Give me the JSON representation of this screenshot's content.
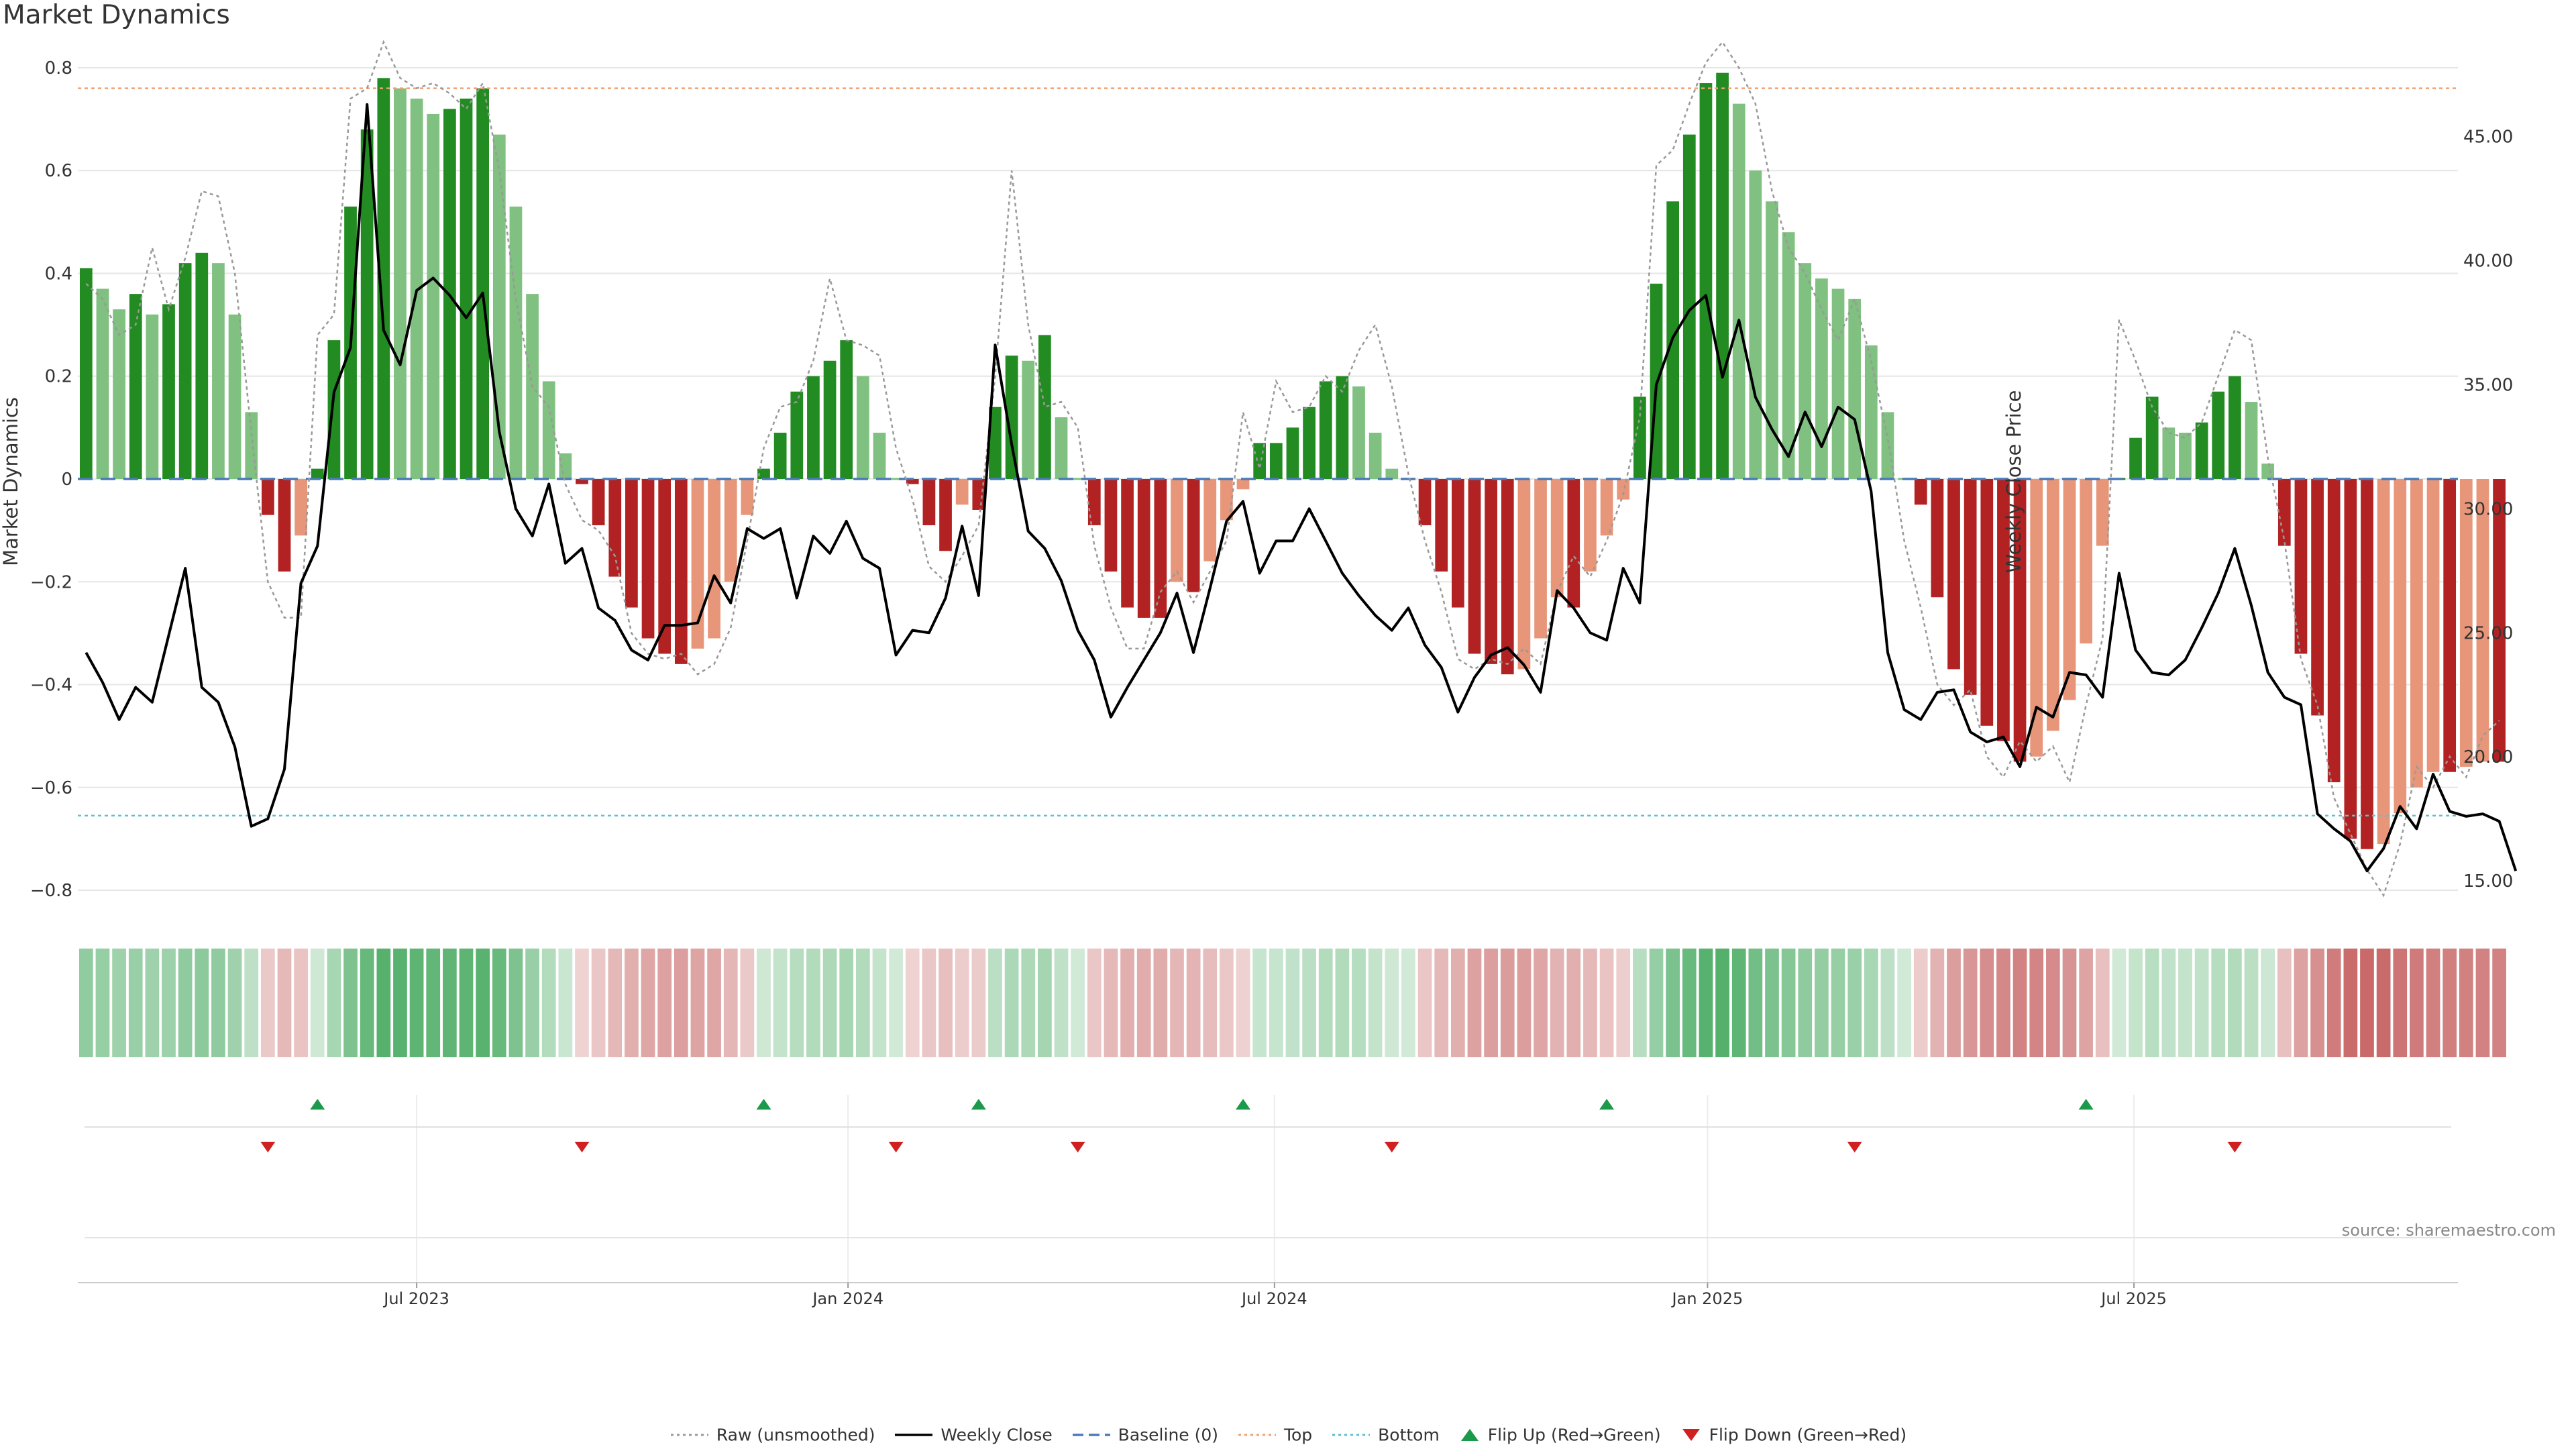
{
  "title": "Market Dynamics",
  "source": "source: sharemaestro.com",
  "colors": {
    "strong_green": "#228b22",
    "light_green": "#80c080",
    "strong_red": "#b22222",
    "light_red": "#e8967a",
    "weekly_close": "#000000",
    "raw": "#999999",
    "baseline": "#4a7ab8",
    "top": "#f0a070",
    "bottom": "#5bc0d0",
    "flip_up": "#1a9a4a",
    "flip_down": "#d02020"
  },
  "legend": [
    {
      "key": "raw",
      "label": "Raw (unsmoothed)",
      "style": "dotted",
      "color": "#999999"
    },
    {
      "key": "close",
      "label": "Weekly Close",
      "style": "solid",
      "color": "#000000"
    },
    {
      "key": "baseline",
      "label": "Baseline (0)",
      "style": "dashed",
      "color": "#4a7ab8"
    },
    {
      "key": "top",
      "label": "Top",
      "style": "dotted",
      "color": "#f0a070"
    },
    {
      "key": "bottom",
      "label": "Bottom",
      "style": "dotted",
      "color": "#5bc0d0"
    },
    {
      "key": "flipup",
      "label": "Flip Up (Red→Green)",
      "style": "triangle-up",
      "color": "#1a9a4a"
    },
    {
      "key": "flipdown",
      "label": "Flip Down (Green→Red)",
      "style": "triangle-down",
      "color": "#d02020"
    }
  ],
  "chart_data": {
    "type": "bar",
    "title": "Market Dynamics",
    "ylabel": "Market Dynamics",
    "y2label": "Weekly Close Price",
    "ylim": [
      -0.83,
      0.83
    ],
    "y2lim": [
      14.0,
      48.4
    ],
    "yticks": [
      0.8,
      0.6,
      0.4,
      0.2,
      0,
      -0.2,
      -0.4,
      -0.6,
      -0.8
    ],
    "yticklabels": [
      "0.8",
      "0.6",
      "0.4",
      "0.2",
      "0",
      "−0.2",
      "−0.4",
      "−0.6",
      "−0.8"
    ],
    "y2ticks": [
      45,
      40,
      35,
      30,
      25,
      20,
      15
    ],
    "y2ticklabels": [
      "45.00",
      "40.00",
      "35.00",
      "30.00",
      "25.00",
      "20.00",
      "15.00"
    ],
    "xticks": [
      {
        "label": "Jul 2023",
        "week": 20.5
      },
      {
        "label": "Jan 2024",
        "week": 46.6
      },
      {
        "label": "Jul 2024",
        "week": 72.4
      },
      {
        "label": "Jan 2025",
        "week": 98.6
      },
      {
        "label": "Jul 2025",
        "week": 124.4
      }
    ],
    "top_line": 0.76,
    "bottom_line": -0.655,
    "legend_position": "bottom-center",
    "grid": true,
    "weeks": 144,
    "series": [
      {
        "name": "Market Dynamics",
        "values": [
          0.41,
          0.37,
          0.33,
          0.36,
          0.32,
          0.34,
          0.42,
          0.44,
          0.42,
          0.32,
          0.13,
          -0.07,
          -0.18,
          -0.11,
          0.02,
          0.27,
          0.53,
          0.68,
          0.78,
          0.76,
          0.74,
          0.71,
          0.72,
          0.74,
          0.76,
          0.67,
          0.53,
          0.36,
          0.19,
          0.05,
          -0.01,
          -0.09,
          -0.19,
          -0.25,
          -0.31,
          -0.34,
          -0.36,
          -0.33,
          -0.31,
          -0.2,
          -0.07,
          0.02,
          0.09,
          0.17,
          0.2,
          0.23,
          0.27,
          0.2,
          0.09,
          0.0,
          -0.01,
          -0.09,
          -0.14,
          -0.05,
          -0.06,
          0.14,
          0.24,
          0.23,
          0.28,
          0.12,
          0.0,
          -0.09,
          -0.18,
          -0.25,
          -0.27,
          -0.27,
          -0.2,
          -0.22,
          -0.16,
          -0.08,
          -0.02,
          0.07,
          0.07,
          0.1,
          0.14,
          0.19,
          0.2,
          0.18,
          0.09,
          0.02,
          0.0,
          -0.09,
          -0.18,
          -0.25,
          -0.34,
          -0.36,
          -0.38,
          -0.37,
          -0.31,
          -0.23,
          -0.25,
          -0.18,
          -0.11,
          -0.04,
          0.16,
          0.38,
          0.54,
          0.67,
          0.77,
          0.79,
          0.73,
          0.6,
          0.54,
          0.48,
          0.42,
          0.39,
          0.37,
          0.35,
          0.26,
          0.13,
          0.0,
          -0.05,
          -0.23,
          -0.37,
          -0.42,
          -0.48,
          -0.51,
          -0.55,
          -0.54,
          -0.49,
          -0.43,
          -0.32,
          -0.13,
          0.0,
          0.08,
          0.16,
          0.1,
          0.09,
          0.11,
          0.17,
          0.2,
          0.15,
          0.03,
          -0.13,
          -0.34,
          -0.46,
          -0.59,
          -0.7,
          -0.72,
          -0.71,
          -0.65,
          -0.6,
          -0.57,
          -0.57,
          -0.56,
          -0.55,
          -0.55
        ]
      },
      {
        "name": "Weekly Close",
        "values": [
          24.2,
          23.0,
          21.5,
          22.8,
          22.2,
          24.9,
          27.6,
          22.8,
          22.2,
          20.4,
          17.2,
          17.5,
          19.5,
          27.0,
          28.5,
          34.7,
          36.5,
          46.3,
          37.2,
          35.8,
          38.8,
          39.3,
          38.6,
          37.7,
          38.7,
          33.1,
          30.0,
          28.9,
          31.0,
          27.8,
          28.4,
          26.0,
          25.5,
          24.3,
          23.9,
          25.3,
          25.3,
          25.4,
          27.3,
          26.2,
          29.2,
          28.8,
          29.2,
          26.4,
          28.9,
          28.2,
          29.5,
          28.0,
          27.6,
          24.1,
          25.1,
          25.0,
          26.4,
          29.3,
          26.5,
          36.6,
          32.6,
          29.1,
          28.4,
          27.1,
          25.1,
          23.9,
          21.6,
          22.8,
          23.9,
          25.0,
          26.6,
          24.2,
          26.8,
          29.5,
          30.3,
          27.4,
          28.7,
          28.7,
          30.0,
          28.7,
          27.4,
          26.5,
          25.7,
          25.1,
          26.0,
          24.5,
          23.6,
          21.8,
          23.2,
          24.1,
          24.4,
          23.7,
          22.6,
          26.7,
          26.0,
          25.0,
          24.7,
          27.6,
          26.2,
          35.0,
          36.9,
          38.0,
          38.6,
          35.3,
          37.6,
          34.5,
          33.2,
          32.1,
          33.9,
          32.5,
          34.1,
          33.6,
          30.7,
          24.2,
          21.9,
          21.5,
          22.6,
          22.7,
          21.0,
          20.6,
          20.8,
          19.6,
          22.0,
          21.6,
          23.4,
          23.3,
          22.4,
          27.4,
          24.3,
          23.4,
          23.3,
          23.9,
          25.2,
          26.6,
          28.4,
          26.1,
          23.4,
          22.4,
          22.1,
          17.7,
          17.1,
          16.6,
          15.4,
          16.3,
          18.0,
          17.1,
          19.3,
          17.8,
          17.6,
          17.7,
          17.4,
          15.4
        ]
      },
      {
        "name": "Raw (unsmoothed)",
        "values": [
          0.38,
          0.35,
          0.28,
          0.3,
          0.45,
          0.33,
          0.43,
          0.56,
          0.55,
          0.4,
          0.09,
          -0.2,
          -0.27,
          -0.27,
          0.28,
          0.32,
          0.74,
          0.76,
          0.85,
          0.78,
          0.76,
          0.77,
          0.75,
          0.72,
          0.77,
          0.6,
          0.35,
          0.18,
          0.14,
          -0.01,
          -0.08,
          -0.1,
          -0.15,
          -0.3,
          -0.34,
          -0.35,
          -0.34,
          -0.38,
          -0.36,
          -0.29,
          -0.12,
          0.06,
          0.14,
          0.15,
          0.23,
          0.39,
          0.27,
          0.26,
          0.24,
          0.06,
          -0.04,
          -0.17,
          -0.2,
          -0.15,
          -0.09,
          0.2,
          0.6,
          0.3,
          0.14,
          0.15,
          0.1,
          -0.13,
          -0.25,
          -0.33,
          -0.33,
          -0.22,
          -0.18,
          -0.24,
          -0.18,
          -0.12,
          0.13,
          0.02,
          0.19,
          0.13,
          0.14,
          0.2,
          0.17,
          0.25,
          0.3,
          0.18,
          0.01,
          -0.12,
          -0.22,
          -0.35,
          -0.37,
          -0.35,
          -0.36,
          -0.33,
          -0.36,
          -0.22,
          -0.15,
          -0.19,
          -0.12,
          -0.03,
          0.12,
          0.61,
          0.64,
          0.73,
          0.81,
          0.85,
          0.8,
          0.73,
          0.56,
          0.45,
          0.4,
          0.33,
          0.27,
          0.35,
          0.23,
          0.08,
          -0.12,
          -0.25,
          -0.4,
          -0.44,
          -0.41,
          -0.54,
          -0.58,
          -0.51,
          -0.55,
          -0.52,
          -0.59,
          -0.44,
          -0.31,
          0.31,
          0.23,
          0.14,
          0.09,
          0.08,
          0.11,
          0.2,
          0.29,
          0.27,
          0.04,
          -0.12,
          -0.35,
          -0.44,
          -0.62,
          -0.69,
          -0.76,
          -0.81,
          -0.71,
          -0.56,
          -0.6,
          -0.54,
          -0.58,
          -0.5,
          -0.47
        ]
      }
    ],
    "flip_up_weeks": [
      14,
      41,
      54,
      70,
      92,
      121
    ],
    "flip_down_weeks": [
      11,
      30,
      49,
      60,
      79,
      107,
      130
    ]
  }
}
